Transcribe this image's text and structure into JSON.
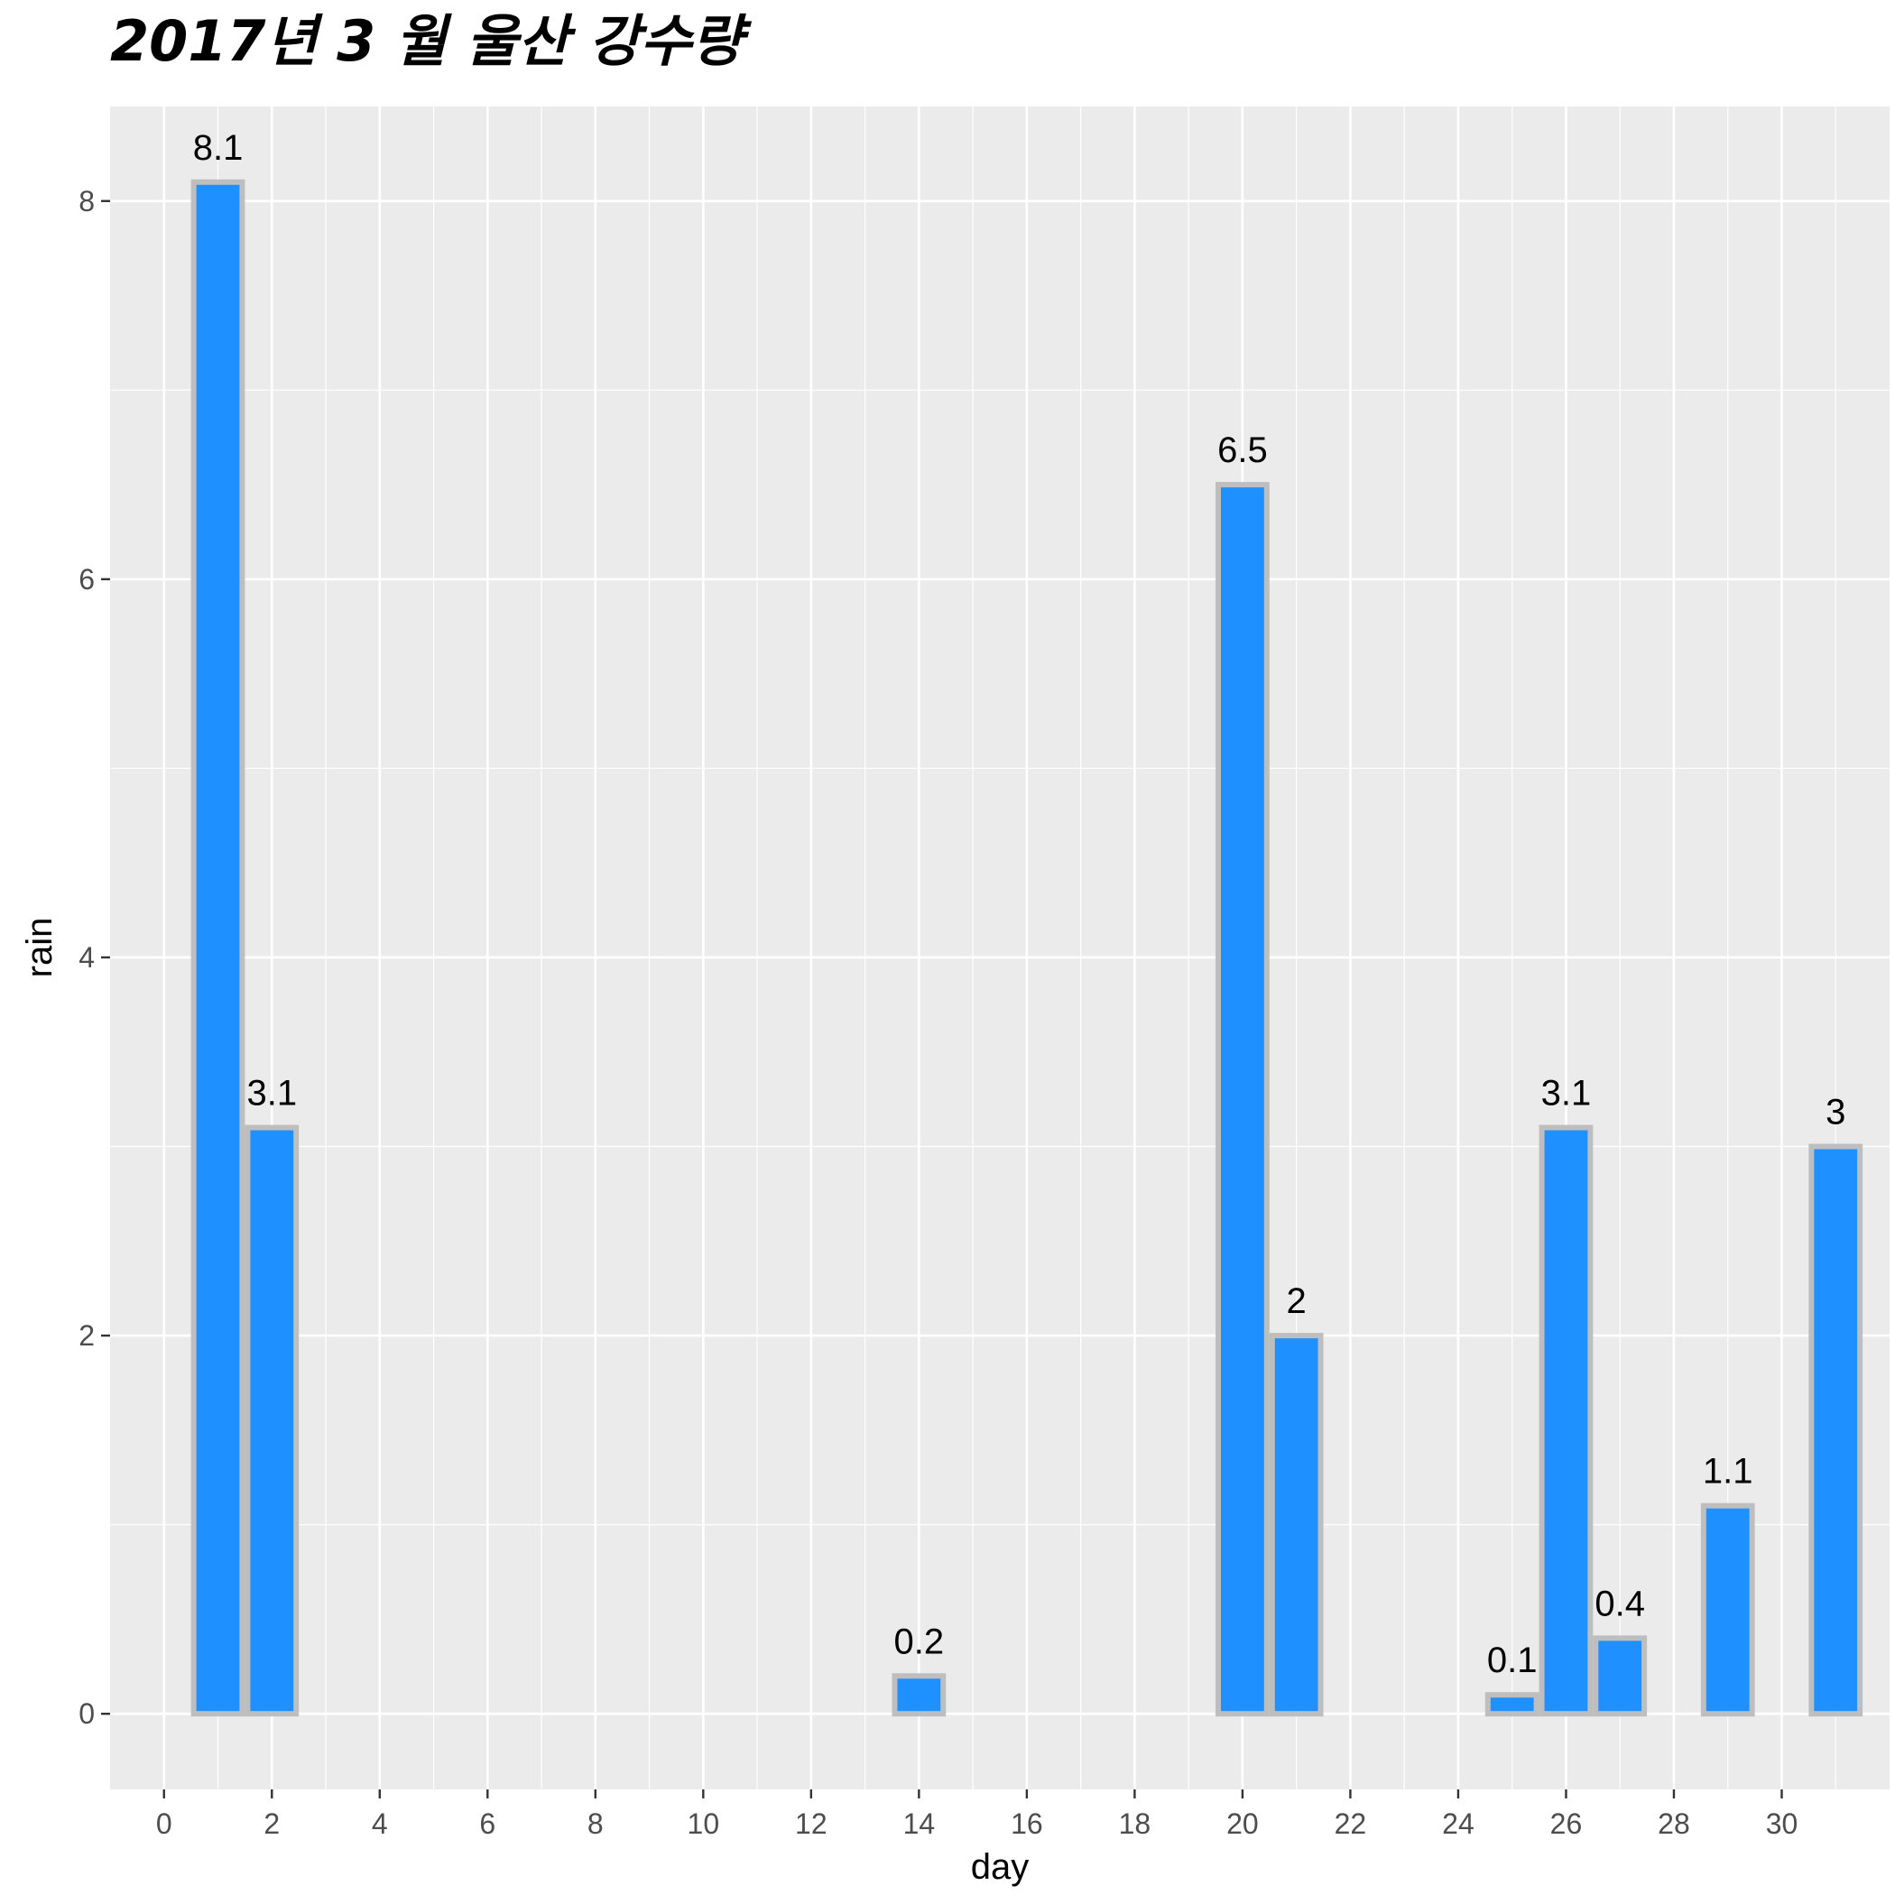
{
  "chart_data": {
    "type": "bar",
    "title": "2017년 3 월 울산 강수량",
    "xlabel": "day",
    "ylabel": "rain",
    "x": [
      1,
      2,
      14,
      20,
      21,
      25,
      26,
      27,
      29,
      31
    ],
    "values": [
      8.1,
      3.1,
      0.2,
      6.5,
      2,
      0.1,
      3.1,
      0.4,
      1.1,
      3
    ],
    "data_labels": [
      "8.1",
      "3.1",
      "0.2",
      "6.5",
      "2",
      "0.1",
      "3.1",
      "0.4",
      "1.1",
      "3"
    ],
    "xlim": [
      -1,
      32
    ],
    "ylim": [
      -0.4,
      8.5
    ],
    "x_ticks": [
      "0",
      "2",
      "4",
      "6",
      "8",
      "10",
      "12",
      "14",
      "16",
      "18",
      "20",
      "22",
      "24",
      "26",
      "28",
      "30"
    ],
    "y_ticks": [
      "0",
      "2",
      "4",
      "6",
      "8"
    ],
    "grid": true,
    "legend": "none",
    "colors": {
      "bar_fill": "#1E90FF",
      "bar_outline": "#BEBEBE",
      "panel_background": "#EBEBEB",
      "grid": "#FFFFFF"
    }
  }
}
